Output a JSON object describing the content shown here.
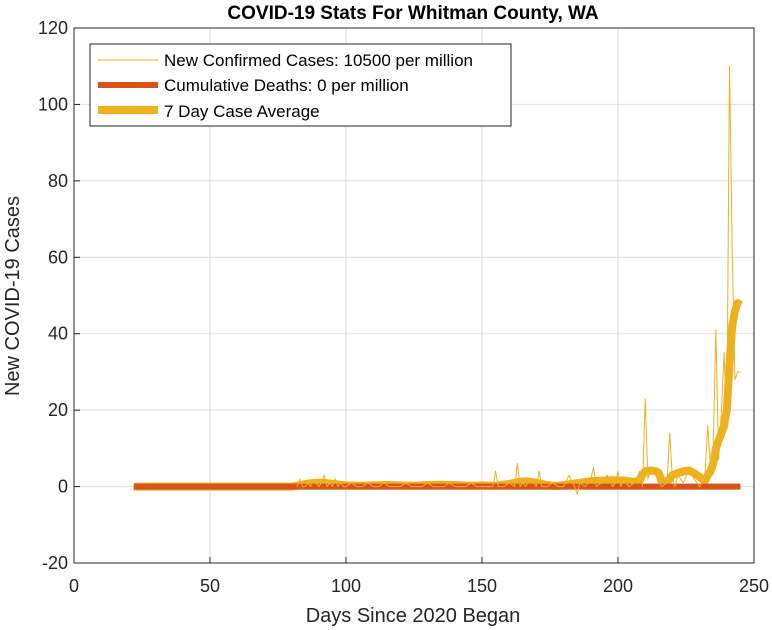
{
  "chart_data": {
    "type": "line",
    "title": "COVID-19 Stats For Whitman County, WA",
    "xlabel": "Days Since 2020 Began",
    "ylabel": "New COVID-19 Cases",
    "xlim": [
      0,
      250
    ],
    "ylim": [
      -20,
      120
    ],
    "xticks": [
      0,
      50,
      100,
      150,
      200,
      250
    ],
    "yticks": [
      -20,
      0,
      20,
      40,
      60,
      80,
      100,
      120
    ],
    "grid": true,
    "legend_position": "top-left",
    "series": [
      {
        "name": "New Confirmed Cases: 10500 per million",
        "color": "#EDB120",
        "style": "thin",
        "x": [
          82,
          83,
          84,
          85,
          86,
          87,
          88,
          89,
          90,
          91,
          92,
          93,
          94,
          95,
          96,
          97,
          98,
          99,
          100,
          102,
          104,
          106,
          108,
          110,
          112,
          114,
          116,
          118,
          120,
          122,
          124,
          126,
          128,
          130,
          132,
          134,
          136,
          138,
          140,
          142,
          144,
          146,
          148,
          150,
          152,
          154,
          155,
          156,
          158,
          160,
          162,
          163,
          164,
          165,
          166,
          168,
          170,
          171,
          172,
          174,
          176,
          178,
          180,
          182,
          184,
          185,
          186,
          188,
          190,
          191,
          192,
          194,
          196,
          198,
          199,
          200,
          201,
          202,
          204,
          206,
          208,
          209,
          210,
          211,
          212,
          214,
          216,
          218,
          219,
          220,
          221,
          222,
          224,
          226,
          228,
          230,
          232,
          233,
          234,
          235,
          236,
          237,
          238,
          239,
          240,
          241,
          242,
          243,
          244,
          245
        ],
        "y": [
          0,
          2,
          0,
          0,
          1,
          0,
          2,
          1,
          0,
          1,
          3,
          0,
          1,
          0,
          2,
          0,
          1,
          0,
          0,
          1,
          0,
          0,
          1,
          0,
          0,
          1,
          0,
          0,
          0,
          1,
          0,
          0,
          0,
          1,
          0,
          0,
          0,
          1,
          0,
          0,
          0,
          1,
          0,
          0,
          0,
          0,
          4,
          0,
          0,
          1,
          0,
          6,
          0,
          1,
          0,
          2,
          0,
          4,
          0,
          0,
          1,
          0,
          0,
          3,
          0,
          -2,
          1,
          0,
          2,
          5,
          0,
          1,
          3,
          0,
          1,
          4,
          0,
          2,
          0,
          1,
          4,
          0,
          23,
          2,
          4,
          3,
          0,
          1,
          14,
          2,
          0,
          3,
          1,
          4,
          2,
          0,
          3,
          16,
          5,
          10,
          41,
          7,
          20,
          35,
          15,
          110,
          62,
          28,
          30,
          30
        ]
      },
      {
        "name": "Cumulative Deaths: 0 per million",
        "color": "#D95319",
        "style": "thick",
        "x": [
          22,
          245
        ],
        "y": [
          0,
          0
        ]
      },
      {
        "name": "7 Day Case Average",
        "color": "#EDB120",
        "style": "thickest",
        "x": [
          22,
          80,
          82,
          84,
          86,
          88,
          90,
          92,
          94,
          96,
          98,
          100,
          105,
          110,
          115,
          120,
          125,
          130,
          135,
          140,
          145,
          150,
          155,
          158,
          160,
          162,
          164,
          166,
          168,
          170,
          172,
          174,
          176,
          178,
          180,
          182,
          184,
          186,
          188,
          190,
          192,
          194,
          196,
          198,
          200,
          202,
          204,
          206,
          208,
          209,
          210,
          212,
          214,
          215,
          216,
          218,
          219,
          220,
          222,
          224,
          226,
          228,
          230,
          232,
          233,
          234,
          235,
          236,
          237,
          238,
          239,
          240,
          241,
          242,
          243,
          244,
          245
        ],
        "y": [
          0,
          0,
          0.2,
          0.5,
          0.8,
          0.9,
          1.0,
          1.0,
          0.8,
          0.6,
          0.5,
          0.3,
          0.2,
          0.3,
          0.4,
          0.3,
          0.2,
          0.4,
          0.5,
          0.4,
          0.2,
          0.3,
          0.2,
          0.5,
          0.7,
          1.0,
          1.3,
          1.4,
          1.2,
          1.0,
          0.7,
          0.4,
          0.2,
          0.2,
          0.4,
          0.6,
          0.8,
          1.0,
          1.2,
          1.4,
          1.5,
          1.5,
          1.6,
          1.7,
          1.5,
          1.6,
          1.4,
          1.2,
          1.6,
          3.0,
          4.0,
          4.2,
          4.0,
          3.5,
          1.5,
          1.2,
          2.0,
          3.0,
          3.5,
          4.0,
          4.2,
          3.5,
          2.5,
          1.5,
          3.0,
          4.0,
          6.0,
          10.0,
          12.0,
          14.0,
          16.0,
          20.0,
          32.0,
          42.0,
          46.0,
          48.0,
          47.5
        ]
      }
    ]
  }
}
